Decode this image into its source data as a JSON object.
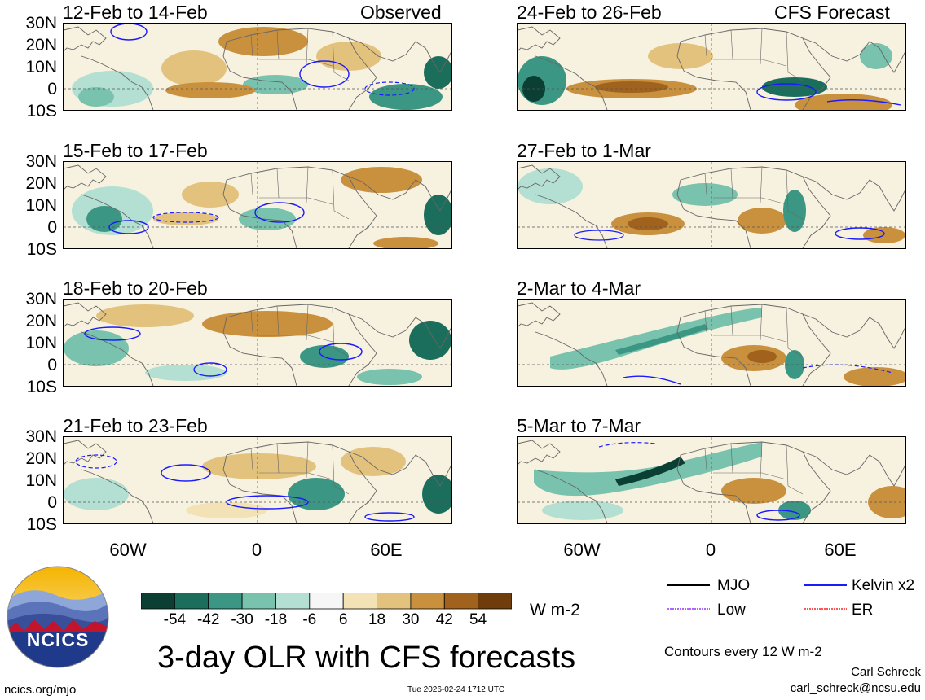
{
  "title": "3-day OLR with CFS forecasts",
  "observed_label": "Observed",
  "forecast_label": "CFS Forecast",
  "panels": {
    "observed": [
      "12-Feb to 14-Feb",
      "15-Feb to 17-Feb",
      "18-Feb to 20-Feb",
      "21-Feb to 23-Feb"
    ],
    "forecast": [
      "24-Feb to 26-Feb",
      "27-Feb to 1-Mar",
      "2-Mar to 4-Mar",
      "5-Mar to 7-Mar"
    ]
  },
  "lat_labels": [
    "30N",
    "20N",
    "10N",
    "0",
    "10S"
  ],
  "lon_labels": [
    "60W",
    "0",
    "60E"
  ],
  "colorbar": {
    "labels": [
      "-54",
      "-42",
      "-30",
      "-18",
      "-6",
      "6",
      "18",
      "30",
      "42",
      "54"
    ],
    "colors": [
      "#0b3f33",
      "#1b6d5c",
      "#3b9783",
      "#78c2ae",
      "#b4e0d3",
      "#f6f6f6",
      "#f2e2b6",
      "#e3c27e",
      "#c9913e",
      "#a1621d",
      "#6f3d0c"
    ],
    "unit": "W m-2"
  },
  "legend": {
    "mjo": "MJO",
    "kelvin": "Kelvin x2",
    "low": "Low",
    "er": "ER",
    "colors": {
      "mjo": "#000000",
      "kelvin": "#1a1aff",
      "low": "#9933ff",
      "er": "#ff2020"
    }
  },
  "contours_note": "Contours every 12 W m-2",
  "footer": {
    "url": "ncics.org/mjo",
    "timestamp": "Tue 2026-02-24 1712 UTC",
    "author": "Carl Schreck",
    "email": "carl_schreck@ncsu.edu"
  },
  "logo": {
    "text": "NCICS"
  }
}
